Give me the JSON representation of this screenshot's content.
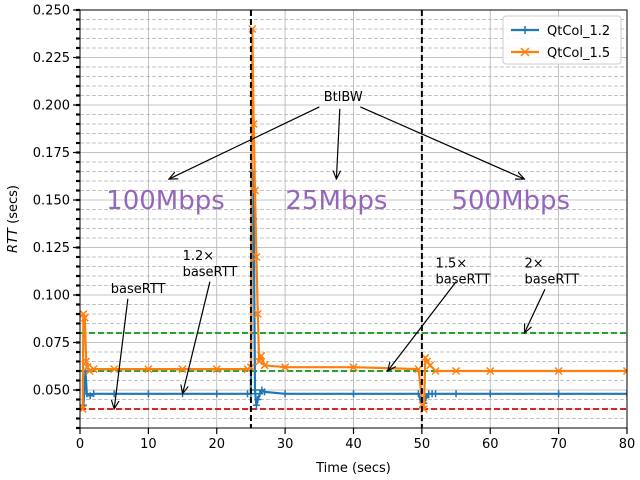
{
  "chart_data": {
    "type": "line",
    "xlabel": "Time (secs)",
    "ylabel_italic": "RTT",
    "ylabel_unit": "(secs)",
    "xlim": [
      0,
      80
    ],
    "ylim": [
      0.03,
      0.25
    ],
    "xticks": [
      0,
      10,
      20,
      30,
      40,
      50,
      60,
      70,
      80
    ],
    "yticks": [
      0.05,
      0.075,
      0.1,
      0.125,
      0.15,
      0.175,
      0.2,
      0.225,
      0.25
    ],
    "ytick_labels": [
      "0.050",
      "0.075",
      "0.100",
      "0.125",
      "0.150",
      "0.175",
      "0.200",
      "0.225",
      "0.250"
    ],
    "grid": true,
    "legend_position": "top-right",
    "series": [
      {
        "name": "QtCol_1.2",
        "color": "#1f77b4",
        "marker": "plus",
        "x": [
          0.5,
          0.8,
          1.0,
          1.5,
          2,
          5,
          10,
          15,
          20,
          24.5,
          25.0,
          25.2,
          25.4,
          25.6,
          25.8,
          26.0,
          26.3,
          26.6,
          27,
          30,
          40,
          49.5,
          50.1,
          50.3,
          50.6,
          51,
          51.5,
          52,
          55,
          60,
          70,
          80
        ],
        "y": [
          0.042,
          0.06,
          0.048,
          0.047,
          0.048,
          0.048,
          0.048,
          0.048,
          0.048,
          0.048,
          0.048,
          0.165,
          0.14,
          0.05,
          0.042,
          0.045,
          0.048,
          0.05,
          0.049,
          0.048,
          0.048,
          0.048,
          0.041,
          0.043,
          0.046,
          0.048,
          0.048,
          0.048,
          0.048,
          0.048,
          0.048,
          0.048
        ]
      },
      {
        "name": "QtCol_1.5",
        "color": "#ff7f0e",
        "marker": "x",
        "x": [
          0.4,
          0.5,
          0.7,
          0.9,
          1.1,
          1.4,
          2,
          5,
          10,
          15,
          20,
          24.5,
          25.0,
          25.2,
          25.4,
          25.6,
          25.8,
          26.0,
          26.2,
          26.5,
          27,
          30,
          40,
          49.5,
          50.1,
          50.3,
          50.5,
          50.8,
          51.2,
          52,
          55,
          60,
          70,
          80
        ],
        "y": [
          0.04,
          0.09,
          0.088,
          0.065,
          0.062,
          0.06,
          0.061,
          0.061,
          0.061,
          0.061,
          0.061,
          0.061,
          0.062,
          0.24,
          0.19,
          0.155,
          0.12,
          0.09,
          0.065,
          0.068,
          0.063,
          0.062,
          0.062,
          0.061,
          0.042,
          0.04,
          0.067,
          0.065,
          0.063,
          0.06,
          0.06,
          0.06,
          0.06,
          0.06
        ]
      }
    ],
    "vlines": [
      25,
      50
    ],
    "hlines": [
      {
        "y": 0.04,
        "color": "#d62728"
      },
      {
        "y": 0.06,
        "color": "#2ca02c"
      },
      {
        "y": 0.08,
        "color": "#2ca02c"
      }
    ],
    "regions": [
      {
        "label": "100Mbps",
        "x": 12.5,
        "y": 0.15
      },
      {
        "label": "25Mbps",
        "x": 37.5,
        "y": 0.15
      },
      {
        "label": "500Mbps",
        "x": 63,
        "y": 0.15
      }
    ],
    "region_color": "#9467bd",
    "btlbw_label": "BtlBW",
    "btlbw_text_at": [
      38.5,
      0.202
    ],
    "btlbw_arrows": [
      {
        "from": [
          35,
          0.199
        ],
        "to": [
          13,
          0.161
        ]
      },
      {
        "from": [
          38,
          0.198
        ],
        "to": [
          37.5,
          0.161
        ]
      },
      {
        "from": [
          41,
          0.199
        ],
        "to": [
          65,
          0.161
        ]
      }
    ],
    "annotations": [
      {
        "lines": [
          "baseRTT"
        ],
        "text_at": [
          4.5,
          0.101
        ],
        "arrow_from": [
          7,
          0.098
        ],
        "arrow_to": [
          5,
          0.04
        ]
      },
      {
        "lines": [
          "1.2×",
          "baseRTT"
        ],
        "text_at": [
          15,
          0.11
        ],
        "arrow_from": [
          19,
          0.107
        ],
        "arrow_to": [
          15,
          0.048
        ]
      },
      {
        "lines": [
          "1.5×",
          "baseRTT"
        ],
        "text_at": [
          52,
          0.106
        ],
        "arrow_from": [
          55,
          0.107
        ],
        "arrow_to": [
          45,
          0.06
        ]
      },
      {
        "lines": [
          "2×",
          "baseRTT"
        ],
        "text_at": [
          65,
          0.106
        ],
        "arrow_from": [
          68,
          0.103
        ],
        "arrow_to": [
          65,
          0.08
        ]
      }
    ]
  }
}
